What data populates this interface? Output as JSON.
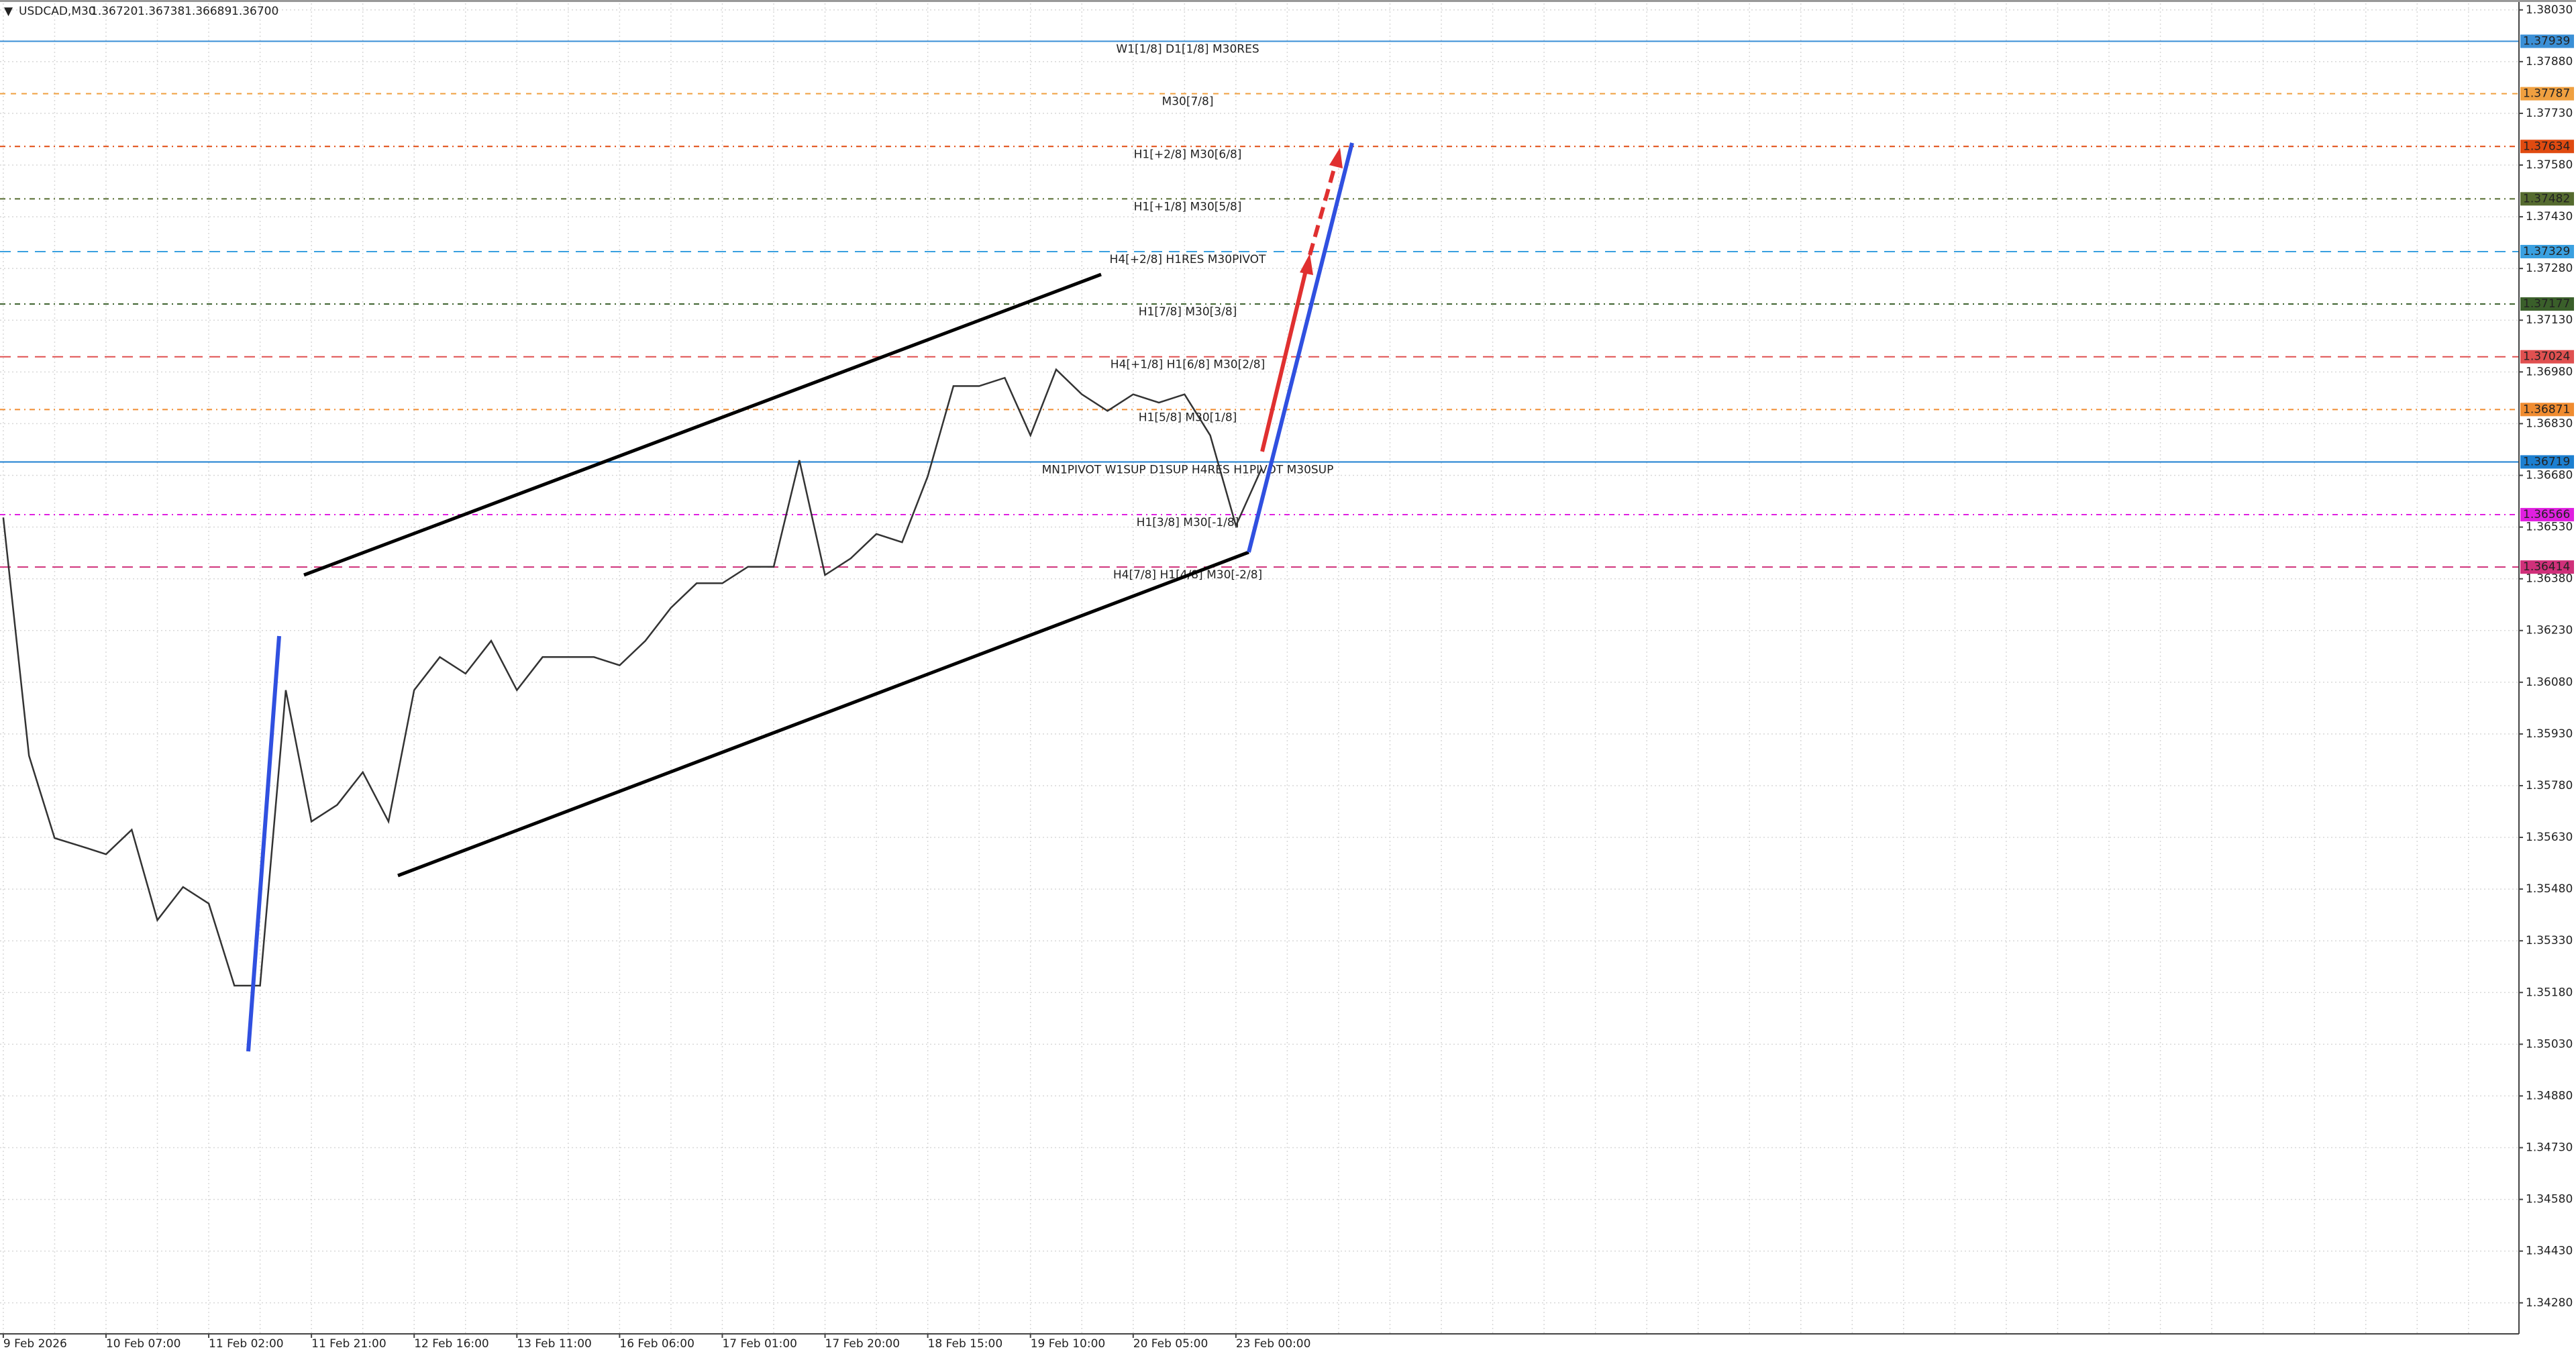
{
  "chart_data": {
    "type": "line",
    "symbol": "USDCAD,M30",
    "quote": [
      "1.36720",
      "1.36738",
      "1.36689",
      "1.36700"
    ],
    "categories": [
      "9 Feb 2026",
      null,
      null,
      null,
      "10 Feb 07:00",
      null,
      null,
      null,
      "11 Feb 02:00",
      null,
      null,
      null,
      "11 Feb 21:00",
      null,
      null,
      null,
      "12 Feb 16:00",
      null,
      null,
      null,
      "13 Feb 11:00",
      null,
      null,
      null,
      "16 Feb 06:00",
      null,
      null,
      null,
      "17 Feb 01:00",
      null,
      null,
      null,
      "17 Feb 20:00",
      null,
      null,
      null,
      "18 Feb 15:00",
      null,
      null,
      null,
      "19 Feb 10:00",
      null,
      null,
      null,
      "20 Feb 05:00",
      null,
      null,
      null,
      "23 Feb 00:00",
      null
    ],
    "series": [
      {
        "name": "USDCAD",
        "color": "#333333",
        "values": [
          1.36558,
          1.35867,
          1.35628,
          1.35605,
          1.35581,
          1.35652,
          1.3539,
          1.35486,
          1.35438,
          1.352,
          1.352,
          1.36057,
          1.35676,
          1.35724,
          1.35819,
          1.35676,
          1.36057,
          1.36153,
          1.36105,
          1.362,
          1.36057,
          1.36153,
          1.36153,
          1.36153,
          1.36129,
          1.362,
          1.36296,
          1.36367,
          1.36367,
          1.36415,
          1.36415,
          1.36724,
          1.36391,
          1.36439,
          1.3651,
          1.36486,
          1.36677,
          1.36939,
          1.36939,
          1.36963,
          1.36796,
          1.36987,
          1.36915,
          1.36867,
          1.36915,
          1.36891,
          1.36915,
          1.36796,
          1.36534,
          1.367
        ]
      }
    ],
    "levels": [
      {
        "value": 1.37939,
        "tag": "1.37939",
        "label": "W1[1/8] D1[1/8] M30RES",
        "color": "#3a8fd6",
        "dash": "none"
      },
      {
        "value": 1.37787,
        "tag": "1.37787",
        "label": "M30[7/8]",
        "color": "#f0a040",
        "dash": "8 8"
      },
      {
        "value": 1.37634,
        "tag": "1.37634",
        "label": "H1[+2/8] M30[6/8]",
        "color": "#e04a10",
        "dash": "8 6 2 6"
      },
      {
        "value": 1.37482,
        "tag": "1.37482",
        "label": "H1[+1/8] M30[5/8]",
        "color": "#556b2f",
        "dash": "8 6 2 6"
      },
      {
        "value": 1.37329,
        "tag": "1.37329",
        "label": "H4[+2/8] H1RES M30PIVOT",
        "color": "#3aa0e0",
        "dash": "16 10"
      },
      {
        "value": 1.37177,
        "tag": "1.37177",
        "label": "H1[7/8] M30[3/8]",
        "color": "#3a5f2a",
        "dash": "8 6 2 6"
      },
      {
        "value": 1.37024,
        "tag": "1.37024",
        "label": "H4[+1/8] H1[6/8] M30[2/8]",
        "color": "#e05050",
        "dash": "16 10"
      },
      {
        "value": 1.36871,
        "tag": "1.36871",
        "label": "H1[5/8] M30[1/8]",
        "color": "#f08c30",
        "dash": "8 6 2 6"
      },
      {
        "value": 1.36719,
        "tag": "1.36719",
        "label": "MN1PIVOT W1SUP D1SUP H4RES H1PIVOT M30SUP",
        "color": "#1c7fd0",
        "dash": "none"
      },
      {
        "value": 1.36566,
        "tag": "1.36566",
        "label": "H1[3/8] M30[-1/8]",
        "color": "#e020e0",
        "dash": "8 6 2 6"
      },
      {
        "value": 1.36414,
        "tag": "1.36414",
        "label": "H4[7/8] H1[4/8] M30[-2/8]",
        "color": "#d0307a",
        "dash": "16 10"
      }
    ],
    "ylim": [
      1.3419,
      1.38049
    ],
    "yticks": [
      {
        "value": 1.3803,
        "label": "1.38030"
      },
      {
        "value": 1.3788,
        "label": "1.37880"
      },
      {
        "value": 1.3773,
        "label": "1.37730"
      },
      {
        "value": 1.3758,
        "label": "1.37580"
      },
      {
        "value": 1.3743,
        "label": "1.37430"
      },
      {
        "value": 1.3728,
        "label": "1.37280"
      },
      {
        "value": 1.3713,
        "label": "1.37130"
      },
      {
        "value": 1.3698,
        "label": "1.36980"
      },
      {
        "value": 1.3683,
        "label": "1.36830"
      },
      {
        "value": 1.3668,
        "label": "1.36680"
      },
      {
        "value": 1.3653,
        "label": "1.36530"
      },
      {
        "value": 1.3638,
        "label": "1.36380"
      },
      {
        "value": 1.3623,
        "label": "1.36230"
      },
      {
        "value": 1.3608,
        "label": "1.36080"
      },
      {
        "value": 1.3593,
        "label": "1.35930"
      },
      {
        "value": 1.3578,
        "label": "1.35780"
      },
      {
        "value": 1.3563,
        "label": "1.35630"
      },
      {
        "value": 1.3548,
        "label": "1.35480"
      },
      {
        "value": 1.3533,
        "label": "1.35330"
      },
      {
        "value": 1.3518,
        "label": "1.35180"
      },
      {
        "value": 1.3503,
        "label": "1.35030"
      },
      {
        "value": 1.3488,
        "label": "1.34880"
      },
      {
        "value": 1.3473,
        "label": "1.34730"
      },
      {
        "value": 1.3458,
        "label": "1.34580"
      },
      {
        "value": 1.3443,
        "label": "1.34430"
      },
      {
        "value": 1.3428,
        "label": "1.34280"
      }
    ],
    "grid": true
  }
}
